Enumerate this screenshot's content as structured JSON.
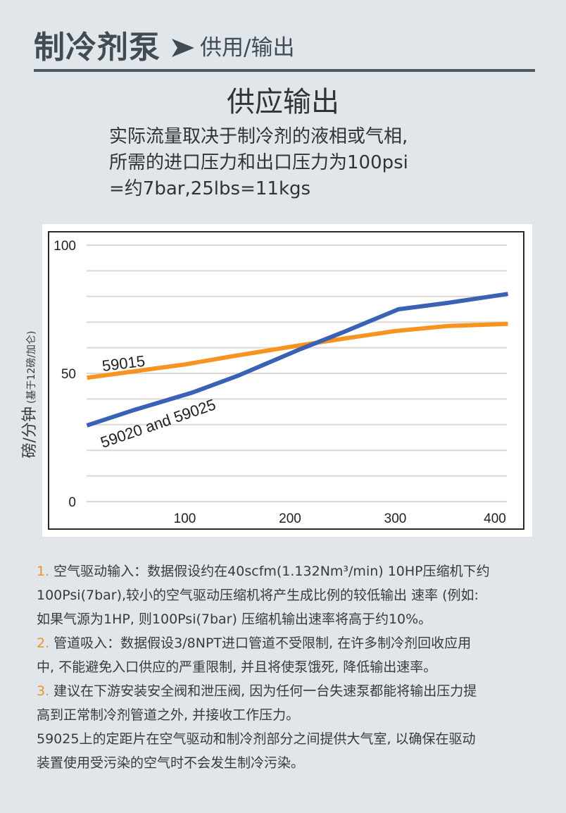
{
  "header": {
    "main": "制冷剂泵",
    "arrow_icon": "arrow-right-icon",
    "sub": "供用/输出"
  },
  "title": "供应输出",
  "subtitle": {
    "lines": [
      "实际流量取决于制冷剂的液相或气相,",
      "所需的进口压力和出口压力为100psi",
      "=约7bar,25lbs=11kgs"
    ]
  },
  "colors": {
    "background": "#e1e6ea",
    "header_text": "#414b54",
    "series_59015": "#f7931e",
    "series_59020_59025": "#3a62b4",
    "note_number": "#f0922a",
    "gridline": "#dcd9d4"
  },
  "chart_data": {
    "type": "line",
    "title": "",
    "xlabel": "",
    "ylabel": "磅/分钟 (基于12磅/加仑)",
    "ylabel_main": "磅/分钟",
    "ylabel_note": "(基于12磅/加仑)",
    "xlim": [
      0,
      410
    ],
    "ylim": [
      0,
      100
    ],
    "x_ticks": [
      100,
      200,
      300,
      400
    ],
    "y_ticks": [
      0,
      50,
      100
    ],
    "y_gridlines": [
      0,
      10,
      20,
      30,
      40,
      50,
      60,
      70,
      80,
      90,
      100
    ],
    "grid": true,
    "legend_position": "inline-labels",
    "series": [
      {
        "name": "59015",
        "color": "#f7931e",
        "x": [
          7,
          100,
          150,
          210,
          250,
          300,
          350,
          407
        ],
        "values": [
          48.3,
          53.5,
          57,
          61,
          63.5,
          66.5,
          68.5,
          69.3
        ]
      },
      {
        "name": "59020 and 59025",
        "color": "#3a62b4",
        "x": [
          7,
          50,
          107,
          150,
          210,
          250,
          303,
          350,
          407
        ],
        "values": [
          29.7,
          35.5,
          42.5,
          49,
          59.5,
          66,
          75,
          77.5,
          81
        ]
      }
    ],
    "annotations": [
      {
        "text": "59015",
        "near_series": "59015"
      },
      {
        "text": "59020 and 59025",
        "near_series": "59020 and 59025"
      }
    ]
  },
  "notes": [
    {
      "number": "1.",
      "lines": [
        "空气驱动输入：数据假设约在40scfm(1.132Nm³/min) 10HP压缩机下约",
        "100Psi(7bar),较小的空气驱动压缩机将产生成比例的较低输出 速率 (例如:",
        "如果气源为1HP, 则100Psi(7bar) 压缩机输出速率将高于约10%。"
      ]
    },
    {
      "number": "2.",
      "lines": [
        "管道吸入：数据假设3/8NPT进口管道不受限制, 在许多制冷剂回收应用",
        "中, 不能避免入口供应的严重限制, 并且将使泵饿死, 降低输出速率。"
      ]
    },
    {
      "number": "3.",
      "lines": [
        "建议在下游安装安全阀和泄压阀, 因为任何一台失速泵都能将输出压力提",
        "高到正常制冷剂管道之外, 并接收工作压力。"
      ]
    },
    {
      "number": "",
      "lines": [
        "59025上的定距片在空气驱动和制冷剂部分之间提供大气室, 以确保在驱动",
        "装置使用受污染的空气时不会发生制冷污染。"
      ]
    }
  ]
}
